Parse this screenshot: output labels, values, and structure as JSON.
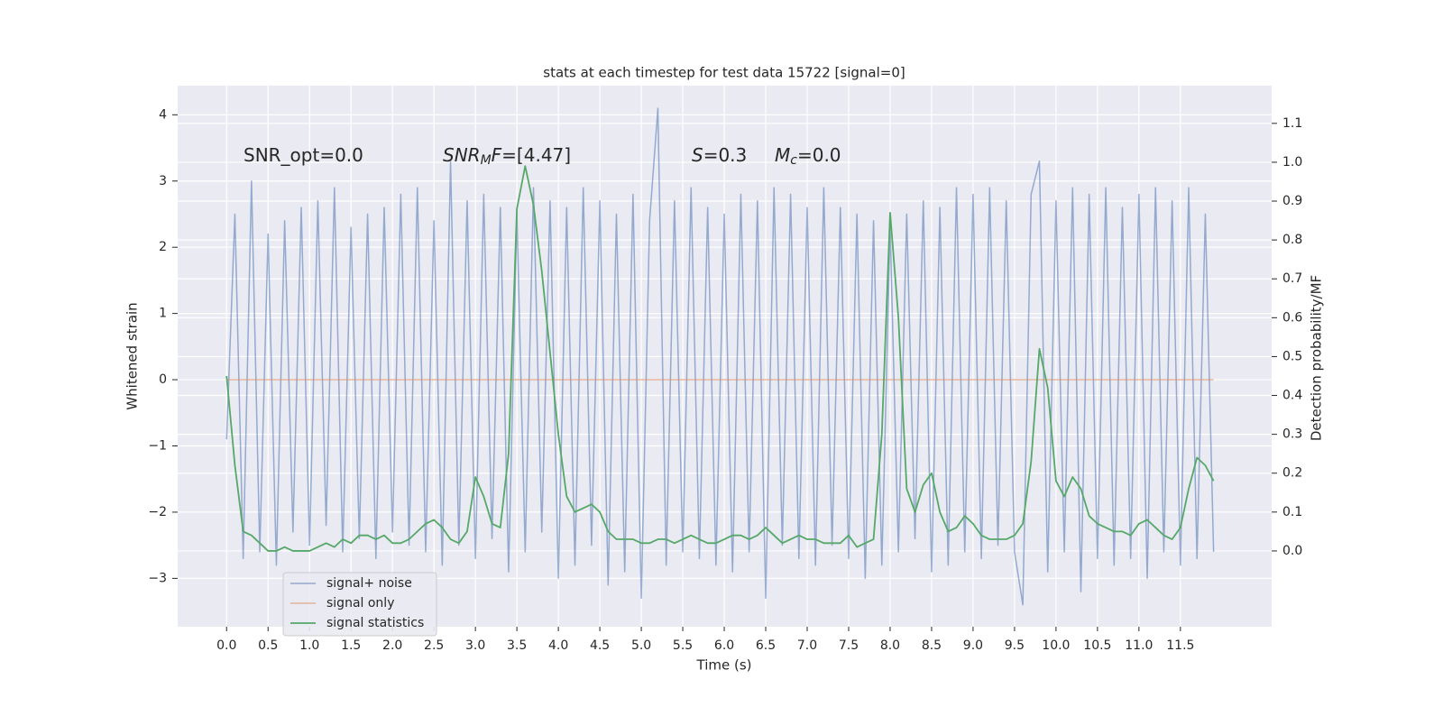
{
  "chart_data": {
    "type": "line",
    "title": "stats at each timestep for test data 15722 [signal=0]",
    "x_label": "Time (s)",
    "y_label": "Whitened strain",
    "y2_label": "Detection probability/MF",
    "annotations": [
      [
        {
          "text": "SNR_opt=0.0",
          "style": "normal"
        }
      ],
      [
        {
          "text": "SNR",
          "style": "italic"
        },
        {
          "text": "M",
          "style": "italic-sub"
        },
        {
          "text": "F",
          "style": "italic"
        },
        {
          "text": "=[4.47]",
          "style": "normal"
        }
      ],
      [
        {
          "text": "S",
          "style": "italic"
        },
        {
          "text": "=0.3",
          "style": "normal"
        }
      ],
      [
        {
          "text": "M",
          "style": "italic"
        },
        {
          "text": "c",
          "style": "italic-sub"
        },
        {
          "text": "=0.0",
          "style": "normal"
        }
      ]
    ],
    "x": [
      0.0,
      0.1,
      0.2,
      0.3,
      0.4,
      0.5,
      0.6,
      0.7,
      0.8,
      0.9,
      1.0,
      1.1,
      1.2,
      1.3,
      1.4,
      1.5,
      1.6,
      1.7,
      1.8,
      1.9,
      2.0,
      2.1,
      2.2,
      2.3,
      2.4,
      2.5,
      2.6,
      2.7,
      2.8,
      2.9,
      3.0,
      3.1,
      3.2,
      3.3,
      3.4,
      3.5,
      3.6,
      3.7,
      3.8,
      3.9,
      4.0,
      4.1,
      4.2,
      4.3,
      4.4,
      4.5,
      4.6,
      4.7,
      4.8,
      4.9,
      5.0,
      5.1,
      5.2,
      5.3,
      5.4,
      5.5,
      5.6,
      5.7,
      5.8,
      5.9,
      6.0,
      6.1,
      6.2,
      6.3,
      6.4,
      6.5,
      6.6,
      6.7,
      6.8,
      6.9,
      7.0,
      7.1,
      7.2,
      7.3,
      7.4,
      7.5,
      7.6,
      7.7,
      7.8,
      7.9,
      8.0,
      8.1,
      8.2,
      8.3,
      8.4,
      8.5,
      8.6,
      8.7,
      8.8,
      8.9,
      9.0,
      9.1,
      9.2,
      9.3,
      9.4,
      9.5,
      9.6,
      9.7,
      9.8,
      9.9,
      10.0,
      10.1,
      10.2,
      10.3,
      10.4,
      10.5,
      10.6,
      10.7,
      10.8,
      10.9,
      11.0,
      11.1,
      11.2,
      11.3,
      11.4,
      11.5,
      11.6,
      11.7,
      11.8,
      11.9
    ],
    "series": [
      {
        "name": "signal+ noise",
        "color": "#4c72b0",
        "axis": "y",
        "values": [
          -0.9,
          2.5,
          -2.7,
          3.0,
          -2.6,
          2.2,
          -2.8,
          2.4,
          -2.3,
          2.6,
          -2.5,
          2.7,
          -2.2,
          2.9,
          -2.6,
          2.3,
          -2.4,
          2.5,
          -2.7,
          2.6,
          -2.3,
          2.8,
          -2.5,
          2.9,
          -2.6,
          2.4,
          -2.8,
          3.3,
          -2.5,
          2.7,
          -2.7,
          2.8,
          -2.4,
          2.6,
          -2.9,
          2.5,
          -2.6,
          2.9,
          -2.3,
          2.7,
          -3.0,
          2.6,
          -2.8,
          2.9,
          -2.5,
          2.7,
          -3.1,
          2.5,
          -2.9,
          2.8,
          -3.3,
          2.4,
          4.1,
          -2.8,
          2.7,
          -2.6,
          2.9,
          -2.7,
          2.6,
          -2.8,
          2.5,
          -2.9,
          2.8,
          -2.6,
          2.7,
          -3.3,
          2.9,
          -2.5,
          2.8,
          -2.7,
          2.6,
          -2.8,
          2.9,
          -2.5,
          2.6,
          -2.7,
          2.5,
          -3.0,
          2.4,
          -2.8,
          2.3,
          -2.6,
          2.5,
          -2.4,
          2.7,
          -2.9,
          2.6,
          -2.8,
          2.9,
          -2.6,
          2.8,
          -2.7,
          2.9,
          -2.5,
          2.7,
          -2.6,
          -3.4,
          2.8,
          3.3,
          -2.9,
          2.7,
          -2.6,
          2.9,
          -3.2,
          2.8,
          -2.7,
          2.9,
          -2.8,
          2.6,
          -2.7,
          2.8,
          -3.0,
          2.9,
          -2.6,
          2.7,
          -2.8,
          2.9,
          -2.7,
          2.5,
          -2.6
        ]
      },
      {
        "name": "signal only",
        "color": "#dd8452",
        "axis": "y",
        "values": [
          0,
          0,
          0,
          0,
          0,
          0,
          0,
          0,
          0,
          0,
          0,
          0,
          0,
          0,
          0,
          0,
          0,
          0,
          0,
          0,
          0,
          0,
          0,
          0,
          0,
          0,
          0,
          0,
          0,
          0,
          0,
          0,
          0,
          0,
          0,
          0,
          0,
          0,
          0,
          0,
          0,
          0,
          0,
          0,
          0,
          0,
          0,
          0,
          0,
          0,
          0,
          0,
          0,
          0,
          0,
          0,
          0,
          0,
          0,
          0,
          0,
          0,
          0,
          0,
          0,
          0,
          0,
          0,
          0,
          0,
          0,
          0,
          0,
          0,
          0,
          0,
          0,
          0,
          0,
          0,
          0,
          0,
          0,
          0,
          0,
          0,
          0,
          0,
          0,
          0,
          0,
          0,
          0,
          0,
          0,
          0,
          0,
          0,
          0,
          0,
          0,
          0,
          0,
          0,
          0,
          0,
          0,
          0,
          0,
          0,
          0,
          0,
          0,
          0,
          0,
          0,
          0,
          0,
          0,
          0
        ]
      },
      {
        "name": "signal statistics",
        "color": "#55a868",
        "axis": "y2",
        "values": [
          0.45,
          0.22,
          0.05,
          0.04,
          0.02,
          0.0,
          0.0,
          0.01,
          0.0,
          0.0,
          0.0,
          0.01,
          0.02,
          0.01,
          0.03,
          0.02,
          0.04,
          0.04,
          0.03,
          0.04,
          0.02,
          0.02,
          0.03,
          0.05,
          0.07,
          0.08,
          0.06,
          0.03,
          0.02,
          0.05,
          0.19,
          0.14,
          0.07,
          0.06,
          0.25,
          0.88,
          0.99,
          0.89,
          0.72,
          0.51,
          0.3,
          0.14,
          0.1,
          0.11,
          0.12,
          0.1,
          0.05,
          0.03,
          0.03,
          0.03,
          0.02,
          0.02,
          0.03,
          0.03,
          0.02,
          0.03,
          0.04,
          0.03,
          0.02,
          0.02,
          0.03,
          0.04,
          0.04,
          0.03,
          0.04,
          0.06,
          0.04,
          0.02,
          0.03,
          0.04,
          0.03,
          0.03,
          0.02,
          0.02,
          0.02,
          0.04,
          0.01,
          0.02,
          0.03,
          0.3,
          0.87,
          0.6,
          0.16,
          0.1,
          0.17,
          0.2,
          0.1,
          0.05,
          0.06,
          0.09,
          0.07,
          0.04,
          0.03,
          0.03,
          0.03,
          0.04,
          0.07,
          0.23,
          0.52,
          0.42,
          0.18,
          0.14,
          0.19,
          0.16,
          0.09,
          0.07,
          0.06,
          0.05,
          0.05,
          0.04,
          0.07,
          0.08,
          0.06,
          0.04,
          0.03,
          0.06,
          0.16,
          0.24,
          0.22,
          0.18
        ]
      }
    ],
    "xlim": [
      -0.59,
      12.6
    ],
    "xticks": [
      {
        "value": 0,
        "label": "0.0"
      },
      0.5,
      {
        "value": 1,
        "label": "1.0"
      },
      1.5,
      {
        "value": 2,
        "label": "2.0"
      },
      2.5,
      {
        "value": 3,
        "label": "3.0"
      },
      3.5,
      {
        "value": 4,
        "label": "4.0"
      },
      4.5,
      {
        "value": 5,
        "label": "5.0"
      },
      5.5,
      {
        "value": 6,
        "label": "6.0"
      },
      6.5,
      {
        "value": 7,
        "label": "7.0"
      },
      7.5,
      {
        "value": 8,
        "label": "8.0"
      },
      8.5,
      {
        "value": 9,
        "label": "9.0"
      },
      9.5,
      {
        "value": 10,
        "label": "10.0"
      },
      10.5,
      {
        "value": 11,
        "label": "11.0"
      },
      11.5
    ],
    "ylim": [
      -3.73,
      4.44
    ],
    "yticks": [
      {
        "value": -3,
        "label": "−3"
      },
      {
        "value": -2,
        "label": "−2"
      },
      {
        "value": -1,
        "label": "−1"
      },
      0,
      1,
      2,
      3,
      4
    ],
    "y2lim": [
      -0.195,
      1.197
    ],
    "y2ticks": [
      {
        "value": 0,
        "label": "0.0"
      },
      0.1,
      0.2,
      0.3,
      0.4,
      0.5,
      0.6,
      0.7,
      0.8,
      0.9,
      {
        "value": 1,
        "label": "1.0"
      },
      1.1
    ],
    "grid": true,
    "legend_position": "lower left"
  }
}
